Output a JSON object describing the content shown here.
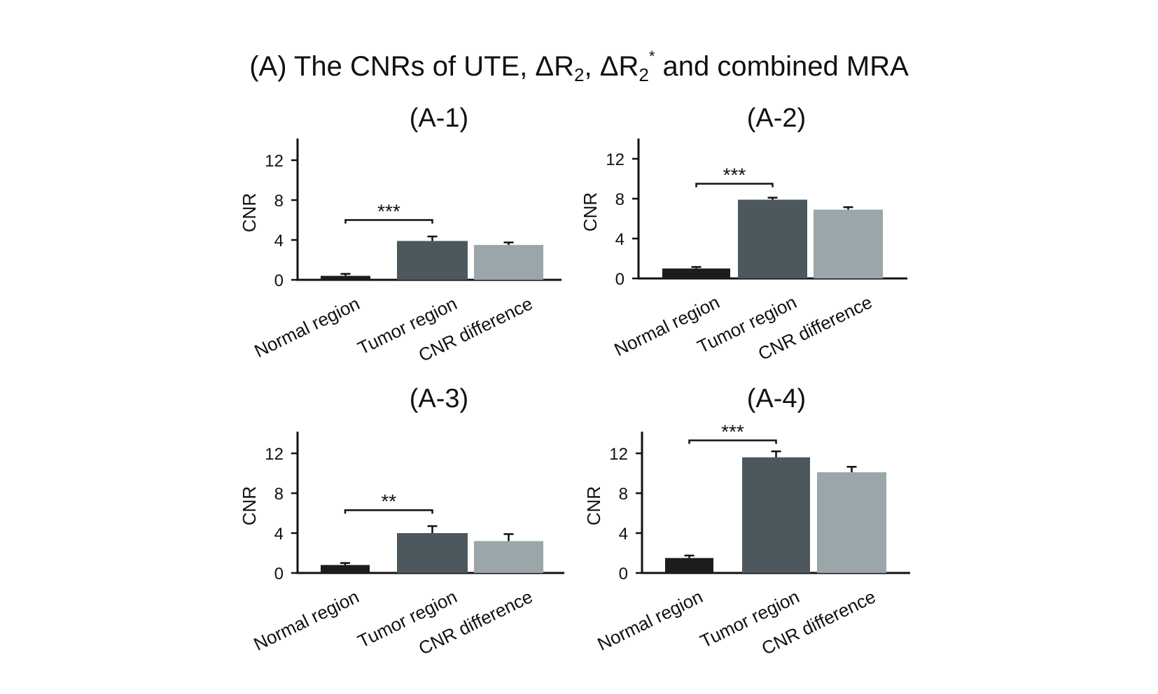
{
  "title": {
    "prefix": "(A) The CNRs of UTE, ΔR",
    "sub1": "2",
    "mid": ", ΔR",
    "sub2": "2",
    "sup": "*",
    "suffix": " and combined MRA"
  },
  "colors": {
    "normal": "#1c1c1c",
    "tumor": "#4d585e",
    "difference": "#9aa6aa",
    "axis": "#111111"
  },
  "chart_data": [
    {
      "type": "bar",
      "title": "(A-1)",
      "ylabel": "CNR",
      "ylim": [
        0,
        14
      ],
      "yticks": [
        0,
        4,
        8,
        12
      ],
      "categories": [
        "Normal region",
        "Tumor region",
        "CNR difference"
      ],
      "values": [
        0.4,
        3.9,
        3.5
      ],
      "errors": [
        0.2,
        0.45,
        0.25
      ],
      "significance": {
        "from": 0,
        "to": 1,
        "label": "***",
        "y": 6.0
      }
    },
    {
      "type": "bar",
      "title": "(A-2)",
      "ylabel": "CNR",
      "ylim": [
        0,
        14
      ],
      "yticks": [
        0,
        4,
        8,
        12
      ],
      "categories": [
        "Normal region",
        "Tumor region",
        "CNR difference"
      ],
      "values": [
        1.0,
        7.9,
        6.9
      ],
      "errors": [
        0.15,
        0.2,
        0.25
      ],
      "significance": {
        "from": 0,
        "to": 1,
        "label": "***",
        "y": 9.5
      }
    },
    {
      "type": "bar",
      "title": "(A-3)",
      "ylabel": "CNR",
      "ylim": [
        0,
        14
      ],
      "yticks": [
        0,
        4,
        8,
        12
      ],
      "categories": [
        "Normal region",
        "Tumor region",
        "CNR difference"
      ],
      "values": [
        0.8,
        4.0,
        3.2
      ],
      "errors": [
        0.2,
        0.7,
        0.7
      ],
      "significance": {
        "from": 0,
        "to": 1,
        "label": "**",
        "y": 6.3
      }
    },
    {
      "type": "bar",
      "title": "(A-4)",
      "ylabel": "CNR",
      "ylim": [
        0,
        14
      ],
      "yticks": [
        0,
        4,
        8,
        12
      ],
      "categories": [
        "Normal region",
        "Tumor region",
        "CNR difference"
      ],
      "values": [
        1.5,
        11.6,
        10.1
      ],
      "errors": [
        0.25,
        0.6,
        0.55
      ],
      "significance": {
        "from": 0,
        "to": 1,
        "label": "***",
        "y": 13.3
      }
    }
  ]
}
